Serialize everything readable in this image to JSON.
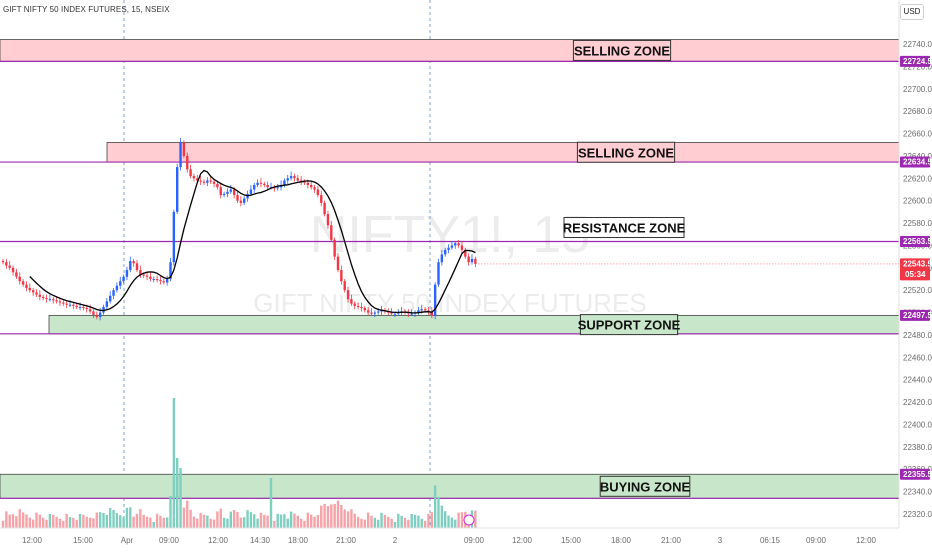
{
  "header": {
    "symbol_title": "GIFT NIFTY 50 INDEX FUTURES, 15, NSEIX"
  },
  "currency": "USD",
  "watermark": {
    "line1": "NIFTY1!, 15",
    "line2": "GIFT NIFTY 50 INDEX FUTURES"
  },
  "zones": [
    {
      "label": "SELLING ZONE",
      "kind": "selling"
    },
    {
      "label": "SELLING ZONE",
      "kind": "selling"
    },
    {
      "label": "RESISTANCE ZONE",
      "kind": "resistance"
    },
    {
      "label": "SUPPORT ZONE",
      "kind": "support"
    },
    {
      "label": "BUYING ZONE",
      "kind": "buying"
    }
  ],
  "price_tags": [
    {
      "value": "22724.5",
      "color": "#9c27b0"
    },
    {
      "value": "22634.5",
      "color": "#9c27b0"
    },
    {
      "value": "22563.5",
      "color": "#9c27b0"
    },
    {
      "value": "22543.5",
      "sub": "05:34",
      "color": "#f23645"
    },
    {
      "value": "22497.5",
      "color": "#9c27b0"
    },
    {
      "value": "22355.5",
      "color": "#9c27b0"
    }
  ],
  "colors": {
    "up": "#2962ff",
    "down": "#f23645",
    "ma": "#000000",
    "zone_line": "#9c27b0",
    "sell_fill": "#ffcdd2",
    "buy_fill": "#c8e6c9",
    "vol_up": "#7fcfc0",
    "vol_down": "#f5a3a8"
  },
  "chart_data": {
    "type": "candlestick",
    "y_ticks": [
      "22740.0",
      "22720.0",
      "22700.0",
      "22680.0",
      "22660.0",
      "22640.0",
      "22620.0",
      "22600.0",
      "22580.0",
      "22560.0",
      "22540.0",
      "22520.0",
      "22500.0",
      "22480.0",
      "22460.0",
      "22440.0",
      "22420.0",
      "22400.0",
      "22380.0",
      "22360.0",
      "22340.0",
      "22320.0"
    ],
    "ylim": [
      22310,
      22750
    ],
    "x_ticks": [
      "12:00",
      "15:00",
      "Apr",
      "09:00",
      "12:00",
      "14:30",
      "18:00",
      "21:00",
      "2",
      "09:00",
      "12:00",
      "15:00",
      "18:00",
      "21:00",
      "3",
      "06:15",
      "09:00",
      "12:00"
    ],
    "zone_levels": [
      {
        "top": 22744,
        "bottom": 22724.5
      },
      {
        "top": 22652,
        "bottom": 22634.5
      },
      {
        "level": 22563.5
      },
      {
        "top": 22497.5,
        "bottom": 22481
      },
      {
        "top": 22355.5,
        "bottom": 22334
      }
    ],
    "last_price": 22543.5,
    "closes": [
      22545,
      22542,
      22540,
      22536,
      22532,
      22528,
      22525,
      22522,
      22520,
      22518,
      22516,
      22514,
      22513,
      22512,
      22512,
      22511,
      22510,
      22509,
      22508,
      22507,
      22507,
      22506,
      22505,
      22505,
      22504,
      22503,
      22501,
      22498,
      22496,
      22500,
      22505,
      22510,
      22515,
      22520,
      22524,
      22528,
      22532,
      22538,
      22546,
      22544,
      22538,
      22534,
      22533,
      22532,
      22530,
      22530,
      22529,
      22528,
      22527,
      22530,
      22545,
      22590,
      22630,
      22652,
      22640,
      22628,
      22622,
      22620,
      22618,
      22617,
      22616,
      22618,
      22617,
      22615,
      22612,
      22605,
      22606,
      22608,
      22610,
      22605,
      22600,
      22598,
      22602,
      22606,
      22610,
      22614,
      22616,
      22615,
      22614,
      22612,
      22612,
      22611,
      22612,
      22614,
      22618,
      22620,
      22622,
      22620,
      22618,
      22617,
      22616,
      22614,
      22612,
      22610,
      22605,
      22598,
      22588,
      22578,
      22565,
      22550,
      22538,
      22528,
      22520,
      22512,
      22508,
      22506,
      22505,
      22504,
      22502,
      22500,
      22499,
      22500,
      22501,
      22502,
      22501,
      22500,
      22499,
      22499,
      22500,
      22501,
      22500,
      22499,
      22499,
      22500,
      22502,
      22503,
      22502,
      22501,
      22497,
      22525,
      22545,
      22552,
      22556,
      22558,
      22560,
      22562,
      22560,
      22556,
      22550,
      22545,
      22548,
      22543.5
    ]
  }
}
